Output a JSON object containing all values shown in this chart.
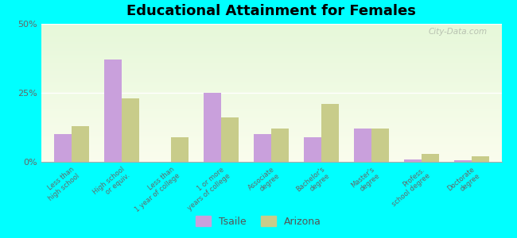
{
  "title": "Educational Attainment for Females",
  "categories": [
    "Less than\nhigh school",
    "High school\nor equiv.",
    "Less than\n1 year of college",
    "1 or more\nyears of college",
    "Associate\ndegree",
    "Bachelor's\ndegree",
    "Master's\ndegree",
    "Profess.\nschool degree",
    "Doctorate\ndegree"
  ],
  "tsaile": [
    10,
    37,
    0,
    25,
    10,
    9,
    12,
    1,
    0.5
  ],
  "arizona": [
    13,
    23,
    9,
    16,
    12,
    21,
    12,
    3,
    2
  ],
  "tsaile_color": "#c9a0dc",
  "arizona_color": "#c8cc8a",
  "bg_color": "#00ffff",
  "ylim": [
    0,
    50
  ],
  "yticks": [
    0,
    25,
    50
  ],
  "ytick_labels": [
    "0%",
    "25%",
    "50%"
  ],
  "watermark": "City-Data.com",
  "legend_tsaile": "Tsaile",
  "legend_arizona": "Arizona",
  "bar_width": 0.35
}
